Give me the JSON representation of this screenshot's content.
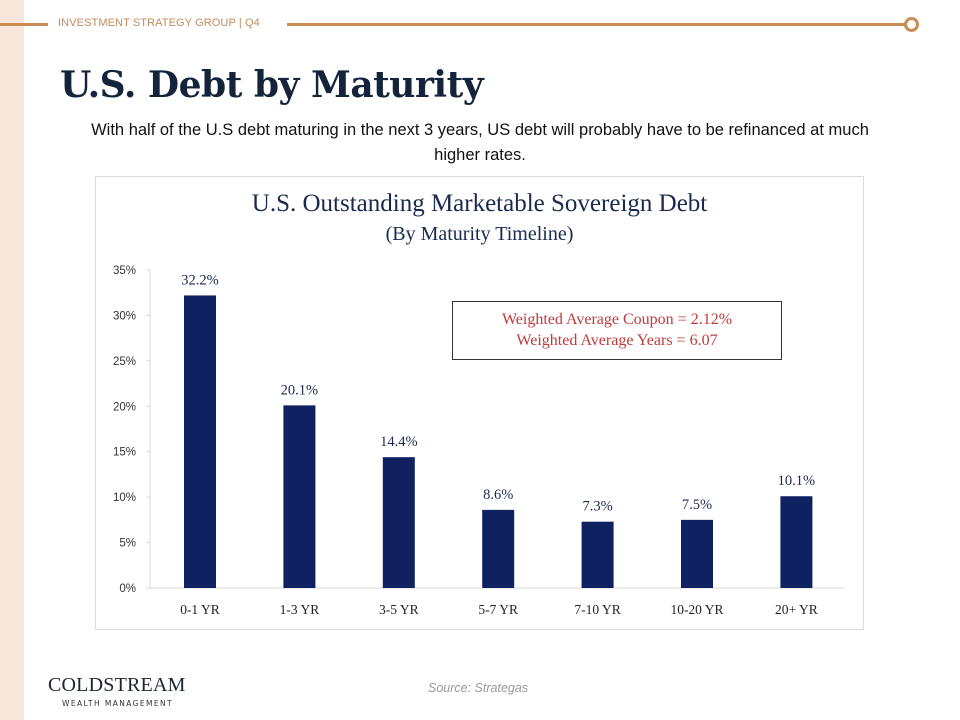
{
  "header": {
    "label": "INVESTMENT  STRATEGY  GROUP | Q4"
  },
  "page": {
    "title": "U.S. Debt by Maturity",
    "subtitle": "With half of the U.S debt maturing in the next 3 years, US debt will probably have to be refinanced at much higher rates."
  },
  "stat_box": {
    "line1": "Weighted Average Coupon = 2.12%",
    "line2": "Weighted Average Years = 6.07"
  },
  "footer": {
    "logo_main": "COLDSTREAM",
    "logo_sub": "WEALTH MANAGEMENT",
    "source": "Source: Strategas"
  },
  "colors": {
    "accent": "#c98c52",
    "bar": "#0f2160",
    "title": "#14243a",
    "stat_text": "#c0393b"
  },
  "chart_data": {
    "type": "bar",
    "title": "U.S. Outstanding Marketable Sovereign Debt",
    "subtitle": "(By Maturity Timeline)",
    "xlabel": "",
    "ylabel": "",
    "categories": [
      "0-1 YR",
      "1-3 YR",
      "3-5 YR",
      "5-7 YR",
      "7-10 YR",
      "10-20 YR",
      "20+ YR"
    ],
    "values": [
      32.2,
      20.1,
      14.4,
      8.6,
      7.3,
      7.5,
      10.1
    ],
    "data_labels": [
      "32.2%",
      "20.1%",
      "14.4%",
      "8.6%",
      "7.3%",
      "7.5%",
      "10.1%"
    ],
    "ylim": [
      0,
      35
    ],
    "yticks": [
      0,
      5,
      10,
      15,
      20,
      25,
      30,
      35
    ],
    "ytick_labels": [
      "0%",
      "5%",
      "10%",
      "15%",
      "20%",
      "25%",
      "30%",
      "35%"
    ],
    "grid": false,
    "legend": "none",
    "annotation": [
      "Weighted Average Coupon = 2.12%",
      "Weighted Average Years = 6.07"
    ]
  }
}
